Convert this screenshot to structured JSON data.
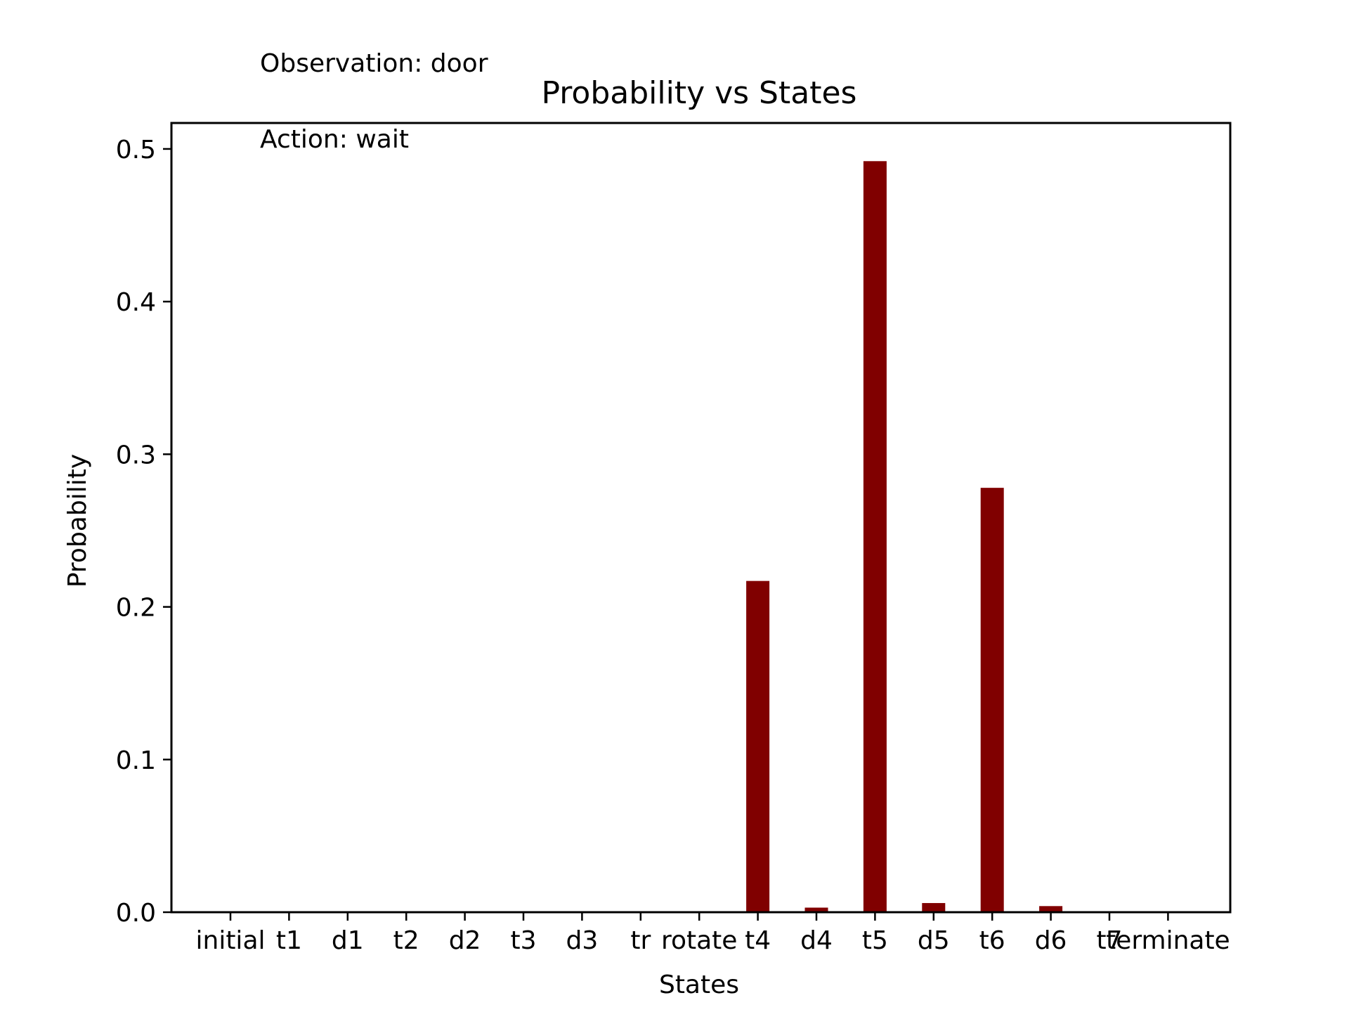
{
  "chart_data": {
    "type": "bar",
    "title": "Probability vs States",
    "xlabel": "States",
    "ylabel": "Probability",
    "annotations": [
      "Observation: door",
      "Action: wait"
    ],
    "categories": [
      "initial",
      "t1",
      "d1",
      "t2",
      "d2",
      "t3",
      "d3",
      "tr",
      "rotate",
      "t4",
      "d4",
      "t5",
      "d5",
      "t6",
      "d6",
      "t7",
      "terminate"
    ],
    "values": [
      0,
      0,
      0,
      0,
      0,
      0,
      0,
      0,
      0,
      0.217,
      0.003,
      0.492,
      0.006,
      0.278,
      0.004,
      0,
      0
    ],
    "ylim": [
      0,
      0.517
    ],
    "yticks": [
      0.0,
      0.1,
      0.2,
      0.3,
      0.4,
      0.5
    ],
    "ytick_labels": [
      "0.0",
      "0.1",
      "0.2",
      "0.3",
      "0.4",
      "0.5"
    ],
    "bar_color": "#800000",
    "grid": false,
    "legend": false
  }
}
